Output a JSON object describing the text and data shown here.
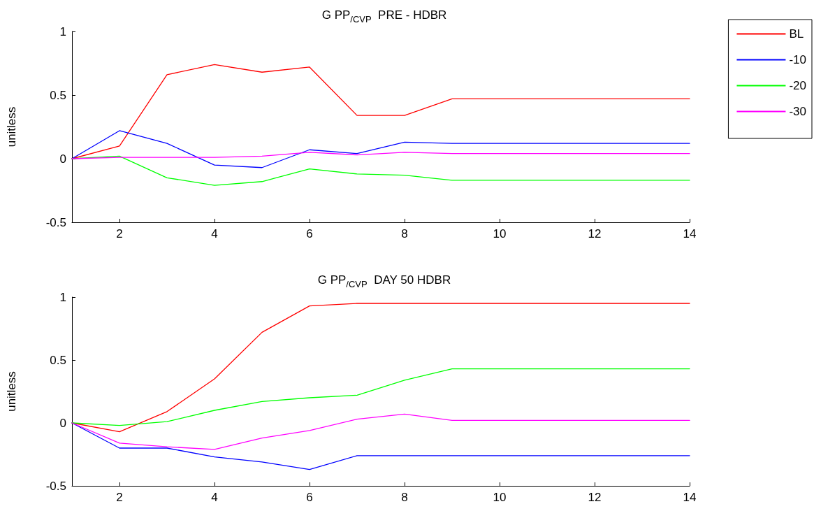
{
  "chart_data": [
    {
      "type": "line",
      "title": "G PP$_{/CVP}$  PRE - HDBR",
      "ylabel": "unitless",
      "x": [
        1,
        2,
        3,
        4,
        5,
        6,
        7,
        8,
        9,
        10,
        11,
        12,
        13,
        14
      ],
      "xlim": [
        1,
        14
      ],
      "xticks": [
        2,
        4,
        6,
        8,
        10,
        12,
        14
      ],
      "ylim": [
        -0.5,
        1
      ],
      "yticks": [
        -0.5,
        0,
        0.5,
        1
      ],
      "grid": false,
      "legend": "top right",
      "marker": "none",
      "line_style": "solid",
      "series": [
        {
          "name": "BL",
          "color": "#ff0000",
          "values": [
            0,
            0.1,
            0.66,
            0.74,
            0.68,
            0.72,
            0.34,
            0.34,
            0.47,
            0.47,
            0.47,
            0.47,
            0.47,
            0.47
          ]
        },
        {
          "name": "-10",
          "color": "#0000ff",
          "values": [
            0,
            0.22,
            0.12,
            -0.05,
            -0.07,
            0.07,
            0.04,
            0.13,
            0.12,
            0.12,
            0.12,
            0.12,
            0.12,
            0.12
          ]
        },
        {
          "name": "-20",
          "color": "#00ff00",
          "values": [
            0,
            0.02,
            -0.15,
            -0.21,
            -0.18,
            -0.08,
            -0.12,
            -0.13,
            -0.17,
            -0.17,
            -0.17,
            -0.17,
            -0.17,
            -0.17
          ]
        },
        {
          "name": "-30",
          "color": "#ff00ff",
          "values": [
            0,
            0.01,
            0.01,
            0.01,
            0.02,
            0.05,
            0.03,
            0.05,
            0.04,
            0.04,
            0.04,
            0.04,
            0.04,
            0.04
          ]
        }
      ]
    },
    {
      "type": "line",
      "title": "G PP$_{/CVP}$  DAY 50 HDBR",
      "ylabel": "unitless",
      "x": [
        1,
        2,
        3,
        4,
        5,
        6,
        7,
        8,
        9,
        10,
        11,
        12,
        13,
        14
      ],
      "xlim": [
        1,
        14
      ],
      "xticks": [
        2,
        4,
        6,
        8,
        10,
        12,
        14
      ],
      "ylim": [
        -0.5,
        1
      ],
      "yticks": [
        -0.5,
        0,
        0.5,
        1
      ],
      "grid": false,
      "legend": false,
      "marker": "none",
      "line_style": "solid",
      "series": [
        {
          "color": "#ff0000",
          "values": [
            0,
            -0.07,
            0.09,
            0.35,
            0.72,
            0.93,
            0.95,
            0.95,
            0.95,
            0.95,
            0.95,
            0.95,
            0.95,
            0.95
          ]
        },
        {
          "color": "#0000ff",
          "values": [
            0,
            -0.2,
            -0.2,
            -0.27,
            -0.31,
            -0.37,
            -0.26,
            -0.26,
            -0.26,
            -0.26,
            -0.26,
            -0.26,
            -0.26,
            -0.26
          ]
        },
        {
          "color": "#00ff00",
          "values": [
            0,
            -0.02,
            0.01,
            0.1,
            0.17,
            0.2,
            0.22,
            0.34,
            0.43,
            0.43,
            0.43,
            0.43,
            0.43,
            0.43
          ]
        },
        {
          "color": "#ff00ff",
          "values": [
            0,
            -0.16,
            -0.19,
            -0.21,
            -0.12,
            -0.06,
            0.03,
            0.07,
            0.02,
            0.02,
            0.02,
            0.02,
            0.02,
            0.02
          ]
        }
      ]
    }
  ]
}
